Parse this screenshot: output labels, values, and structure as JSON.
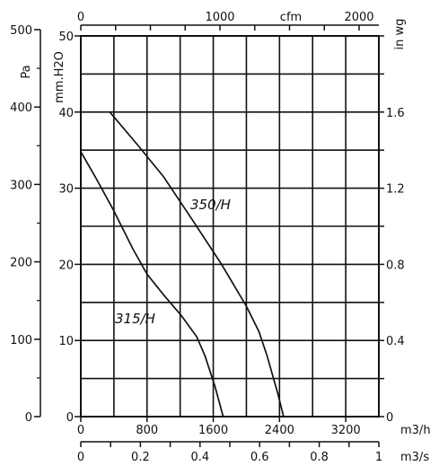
{
  "chart_data": {
    "type": "line",
    "title": "",
    "series": [
      {
        "name": "315/H",
        "x": [
          0,
          200,
          400,
          630,
          800,
          1000,
          1220,
          1400,
          1500,
          1620,
          1720
        ],
        "y": [
          34.8,
          31.0,
          27.0,
          22.0,
          18.7,
          16.0,
          13.2,
          10.5,
          8.0,
          4.0,
          0
        ]
      },
      {
        "name": "350/H",
        "x": [
          350,
          700,
          1000,
          1350,
          1700,
          2000,
          2150,
          2250,
          2380,
          2450
        ],
        "y": [
          40,
          35.5,
          31.5,
          25.8,
          20.0,
          14.5,
          11.2,
          8.0,
          3.0,
          0
        ]
      }
    ],
    "axes": {
      "left_outer": {
        "label": "Pa",
        "ticks": [
          "0",
          "100",
          "200",
          "300",
          "400",
          "500"
        ],
        "range": [
          0,
          500
        ]
      },
      "left_inner": {
        "label": "mm.H2O",
        "ticks": [
          "0",
          "10",
          "20",
          "30",
          "40",
          "50"
        ],
        "range": [
          0,
          50
        ]
      },
      "right": {
        "label": "in wg",
        "ticks": [
          "0",
          "0.4",
          "0.8",
          "1.2",
          "1.6"
        ],
        "range": [
          0,
          2.0
        ]
      },
      "bottom_primary": {
        "label": "m3/h",
        "ticks": [
          "0",
          "800",
          "1600",
          "2400",
          "3200"
        ],
        "range": [
          0,
          3600
        ]
      },
      "bottom_secondary": {
        "label": "m3/s",
        "ticks": [
          "0",
          "0.2",
          "0.4",
          "0.6",
          "0.8",
          "1"
        ],
        "range": [
          0,
          1.0
        ]
      },
      "top": {
        "label": "cfm",
        "ticks": [
          "0",
          "1000",
          "2000"
        ],
        "values": [
          0,
          1000,
          2000
        ]
      }
    },
    "grid": true
  }
}
